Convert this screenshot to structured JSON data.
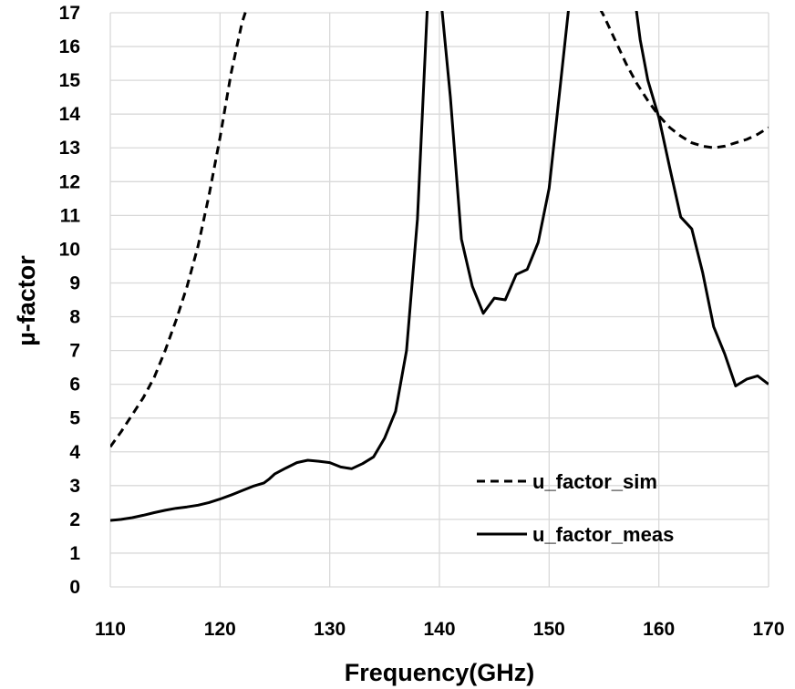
{
  "chart_data": {
    "type": "line",
    "title": "",
    "xlabel": "Frequency(GHz)",
    "ylabel": "µ-factor",
    "xlim": [
      110,
      170
    ],
    "ylim": [
      0,
      17
    ],
    "xticks": [
      110,
      120,
      130,
      140,
      150,
      160,
      170
    ],
    "yticks": [
      0,
      1,
      2,
      3,
      4,
      5,
      6,
      7,
      8,
      9,
      10,
      11,
      12,
      13,
      14,
      15,
      16,
      17
    ],
    "grid": true,
    "legend_position": "bottom-right",
    "series": [
      {
        "name": "u_factor_sim",
        "style": "dashed",
        "x": [
          110,
          111,
          112,
          113,
          114,
          115,
          116,
          117,
          118,
          119,
          120,
          121,
          122,
          122.5,
          154.5,
          155,
          156,
          157,
          158,
          159,
          160,
          161,
          162,
          163,
          164,
          165,
          166,
          167,
          168,
          169,
          170
        ],
        "y": [
          4.15,
          4.6,
          5.1,
          5.6,
          6.2,
          7.0,
          7.9,
          8.9,
          10.1,
          11.6,
          13.3,
          15.2,
          16.7,
          17.2,
          17.2,
          16.9,
          16.2,
          15.5,
          14.9,
          14.4,
          13.95,
          13.6,
          13.35,
          13.15,
          13.05,
          13.0,
          13.05,
          13.15,
          13.25,
          13.4,
          13.6
        ]
      },
      {
        "name": "u_factor_meas",
        "style": "solid",
        "x": [
          110,
          111,
          112,
          113,
          114,
          115,
          116,
          117,
          118,
          119,
          120,
          121,
          122,
          123,
          124,
          124.5,
          125,
          126,
          127,
          128,
          129,
          130,
          131,
          132,
          133,
          134,
          135,
          136,
          137,
          138,
          138.9,
          140.2,
          141,
          142,
          143,
          144,
          145,
          146,
          147,
          148,
          149,
          150,
          151,
          151.8,
          157.9,
          158.3,
          159,
          160,
          161,
          162,
          163,
          164,
          165,
          166,
          167,
          168,
          169,
          170
        ],
        "y": [
          1.97,
          2.0,
          2.05,
          2.12,
          2.2,
          2.27,
          2.33,
          2.37,
          2.42,
          2.5,
          2.6,
          2.72,
          2.85,
          2.98,
          3.08,
          3.2,
          3.35,
          3.52,
          3.68,
          3.75,
          3.72,
          3.68,
          3.55,
          3.5,
          3.65,
          3.85,
          4.4,
          5.2,
          7.0,
          10.9,
          17.2,
          17.2,
          14.5,
          10.3,
          8.9,
          8.1,
          8.55,
          8.5,
          9.25,
          9.4,
          10.2,
          11.8,
          14.8,
          17.2,
          17.2,
          16.2,
          15.0,
          13.9,
          12.4,
          10.95,
          10.6,
          9.3,
          7.7,
          6.9,
          5.95,
          6.15,
          6.25,
          6.0
        ]
      }
    ]
  }
}
